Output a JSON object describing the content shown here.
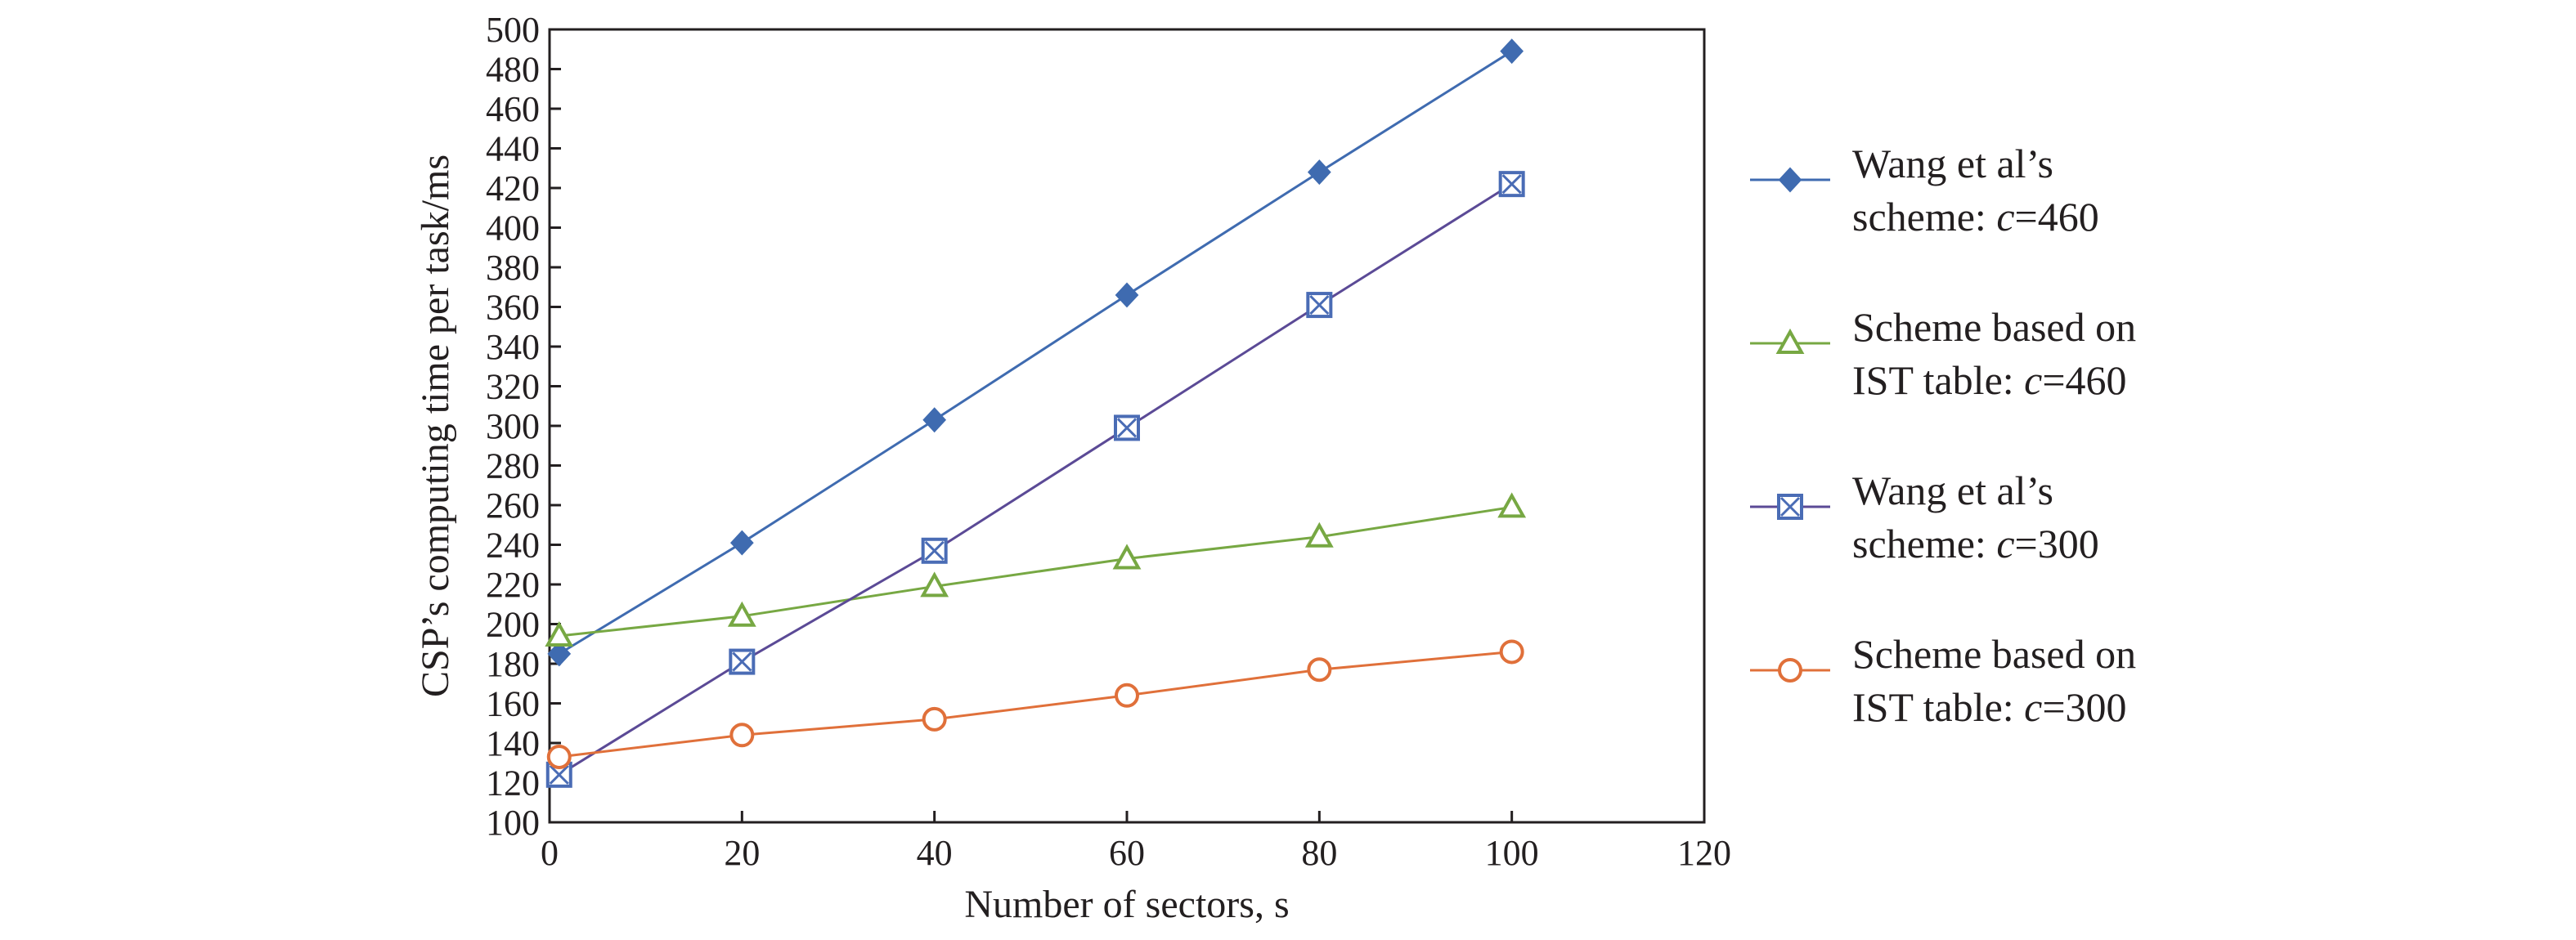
{
  "chart_data": {
    "type": "line",
    "title": "",
    "xlabel": "Number of sectors, s",
    "ylabel": "CSP’s computing time per task/ms",
    "xlim": [
      0,
      120
    ],
    "ylim": [
      100,
      500
    ],
    "xticks": [
      0,
      20,
      40,
      60,
      80,
      100,
      120
    ],
    "yticks": [
      100,
      120,
      140,
      160,
      180,
      200,
      220,
      240,
      260,
      280,
      300,
      320,
      340,
      360,
      380,
      400,
      420,
      440,
      460,
      480,
      500
    ],
    "grid": false,
    "legend_position": "right",
    "series": [
      {
        "name_line1": "Wang et al’s",
        "name_line2_prefix": "scheme: ",
        "name_var": "c",
        "name_value": "=460",
        "color": "#3f6bb0",
        "marker": "diamond",
        "x": [
          1,
          20,
          40,
          60,
          80,
          100
        ],
        "values": [
          185,
          241,
          303,
          366,
          428,
          489
        ]
      },
      {
        "name_line1": "Scheme based on",
        "name_line2_prefix": "IST table: ",
        "name_var": "c",
        "name_value": "=460",
        "color": "#77a843",
        "marker": "triangle",
        "x": [
          1,
          20,
          40,
          60,
          80,
          100
        ],
        "values": [
          194,
          204,
          219,
          233,
          244,
          259
        ]
      },
      {
        "name_line1": "Wang et al’s",
        "name_line2_prefix": "scheme: ",
        "name_var": "c",
        "name_value": "=300",
        "color": "#5b4a96",
        "marker_color": "#4a6cb5",
        "marker": "square-x",
        "x": [
          1,
          20,
          40,
          60,
          80,
          100
        ],
        "values": [
          124,
          181,
          237,
          299,
          361,
          422
        ]
      },
      {
        "name_line1": "Scheme based on",
        "name_line2_prefix": "IST table: ",
        "name_var": "c",
        "name_value": "=300",
        "color": "#e0703a",
        "marker": "circle",
        "x": [
          1,
          20,
          40,
          60,
          80,
          100
        ],
        "values": [
          133,
          144,
          152,
          164,
          177,
          186
        ]
      }
    ]
  }
}
